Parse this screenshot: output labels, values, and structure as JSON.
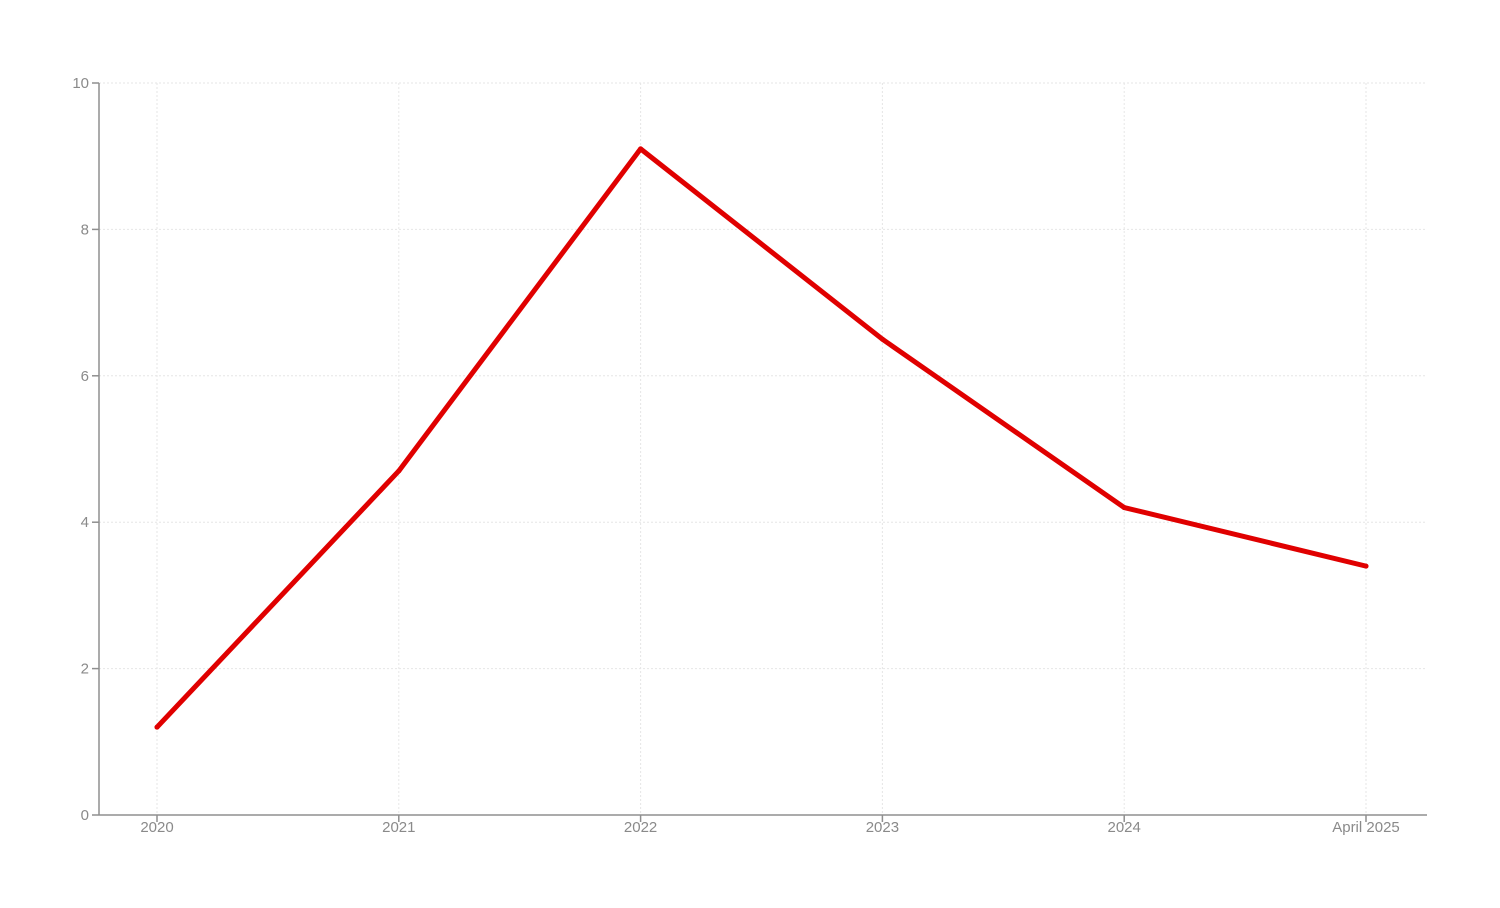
{
  "chart_data": {
    "type": "line",
    "title": "",
    "xlabel": "",
    "ylabel": "",
    "categories": [
      "2020",
      "2021",
      "2022",
      "2023",
      "2024",
      "April 2025"
    ],
    "series": [
      {
        "values": [
          1.2,
          4.7,
          9.1,
          6.5,
          4.2,
          3.4
        ],
        "color": "#e00000"
      }
    ],
    "ylim": [
      0,
      10
    ],
    "yticks": [
      "0",
      "2",
      "4",
      "6",
      "8",
      "10"
    ],
    "grid": true,
    "legend": "none"
  }
}
